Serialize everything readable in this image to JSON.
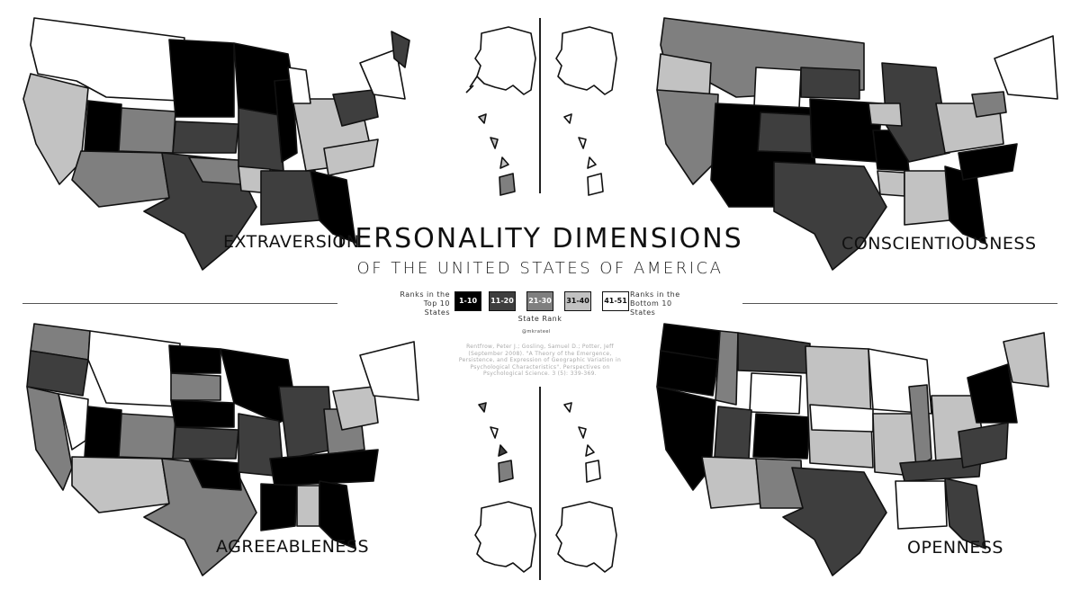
{
  "title": "Personality Dimensions",
  "subtitle": "of the United States of America",
  "maps": [
    {
      "label": "Extraversion"
    },
    {
      "label": "Conscientiousness"
    },
    {
      "label": "Agreeableness"
    },
    {
      "label": "Openness"
    }
  ],
  "legend": {
    "left_note": "Ranks in the Top 10 States",
    "right_note": "Ranks in the Bottom 10 States",
    "caption": "State Rank",
    "bins": [
      {
        "label": "1-10",
        "color": "#000000",
        "text_color": "#ffffff"
      },
      {
        "label": "11-20",
        "color": "#3e3e3e",
        "text_color": "#ffffff"
      },
      {
        "label": "21-30",
        "color": "#7f7f7f",
        "text_color": "#ffffff"
      },
      {
        "label": "31-40",
        "color": "#c2c2c2",
        "text_color": "#111111"
      },
      {
        "label": "41-51",
        "color": "#ffffff",
        "text_color": "#111111"
      }
    ]
  },
  "credit": "@mkrateel",
  "citation": "Rentfrow, Peter J.; Gosling, Samuel D.; Potter, Jeff (September 2008). \"A Theory of the Emergence, Persistence, and Expression of Geographic Variation in Psychological Characteristics\". Perspectives on Psychological Science. 3 (5): 339-369."
}
